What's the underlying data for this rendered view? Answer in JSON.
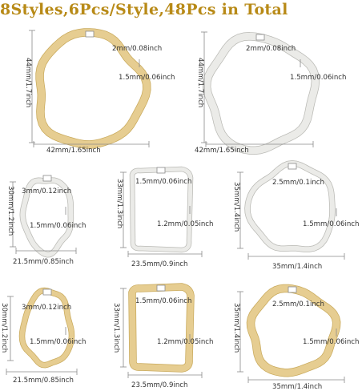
{
  "title": "8Styles,6Pcs/Style,48Pcs in Total",
  "colors": {
    "title": "#b88a17",
    "gold": "#e6cd91",
    "gold_shade": "#c9aa5c",
    "silver": "#ebebe8",
    "silver_shade": "#b9b9b4",
    "measure_line": "#8a8a8a"
  },
  "items": [
    {
      "finish": "gold",
      "shape": "ring-large",
      "hole": "2mm/0.08inch",
      "thickness": "1.5mm/0.06inch",
      "height": "44mm/1.7inch",
      "width": "42mm/1.65inch"
    },
    {
      "finish": "silver",
      "shape": "ring-large",
      "hole": "2mm/0.08inch",
      "thickness": "1.5mm/0.06inch",
      "height": "44mm/1.7inch",
      "width": "42mm/1.65inch"
    },
    {
      "finish": "silver",
      "shape": "oval",
      "hole": "3mm/0.12inch",
      "thickness": "1.5mm/0.06inch",
      "height": "30mm/1.2inch",
      "width": "21.5mm/0.85inch"
    },
    {
      "finish": "silver",
      "shape": "rectangle",
      "hole": "1.5mm/0.06inch",
      "thickness": "1.2mm/0.05inch",
      "height": "33mm/1.3inch",
      "width": "23.5mm/0.9inch"
    },
    {
      "finish": "silver",
      "shape": "ring",
      "hole": "2.5mm/0.1inch",
      "thickness": "1.5mm/0.06inch",
      "height": "35mm/1.4inch",
      "width": "35mm/1.4inch"
    },
    {
      "finish": "gold",
      "shape": "oval",
      "hole": "3mm/0.12inch",
      "thickness": "1.5mm/0.06inch",
      "height": "30mm/1.2inch",
      "width": "21.5mm/0.85inch"
    },
    {
      "finish": "gold",
      "shape": "rectangle",
      "hole": "1.5mm/0.06inch",
      "thickness": "1.2mm/0.05inch",
      "height": "33mm/1.3inch",
      "width": "23.5mm/0.9inch"
    },
    {
      "finish": "gold",
      "shape": "ring",
      "hole": "2.5mm/0.1inch",
      "thickness": "1.5mm/0.06inch",
      "height": "35mm/1.4inch",
      "width": "35mm/1.4inch"
    }
  ]
}
